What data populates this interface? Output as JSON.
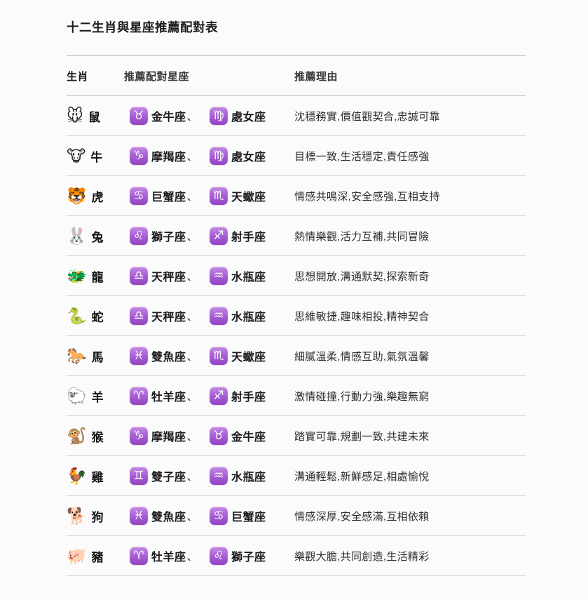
{
  "page": {
    "title": "十二生肖與星座推薦配對表",
    "background_color": "#fbfbfb",
    "zodiac_badge_color_top": "#c48ce5",
    "zodiac_badge_color_bottom": "#9044c4",
    "divider_color": "#d2d2d2"
  },
  "table": {
    "headers": [
      "生肖",
      "推薦配對星座",
      "推薦理由"
    ],
    "rows": [
      {
        "animal_emoji": "🐭",
        "animal": "鼠",
        "sign1_symbol": "♉",
        "sign1": "金牛座",
        "separator": "、",
        "sign2_symbol": "♍",
        "sign2": "處女座",
        "reason": "沈穩務實,價值觀契合,忠誠可靠"
      },
      {
        "animal_emoji": "🐮",
        "animal": "牛",
        "sign1_symbol": "♑",
        "sign1": "摩羯座",
        "separator": "、",
        "sign2_symbol": "♍",
        "sign2": "處女座",
        "reason": "目標一致,生活穩定,責任感強"
      },
      {
        "animal_emoji": "🐯",
        "animal": "虎",
        "sign1_symbol": "♋",
        "sign1": "巨蟹座",
        "separator": "、",
        "sign2_symbol": "♏",
        "sign2": "天蠍座",
        "reason": "情感共鳴深,安全感強,互相支持"
      },
      {
        "animal_emoji": "🐰",
        "animal": "兔",
        "sign1_symbol": "♌",
        "sign1": "獅子座",
        "separator": "、",
        "sign2_symbol": "♐",
        "sign2": "射手座",
        "reason": "熱情樂觀,活力互補,共同冒險"
      },
      {
        "animal_emoji": "🐲",
        "animal": "龍",
        "sign1_symbol": "♎",
        "sign1": "天秤座",
        "separator": "、",
        "sign2_symbol": "♒",
        "sign2": "水瓶座",
        "reason": "思想開放,溝通默契,探索新奇"
      },
      {
        "animal_emoji": "🐍",
        "animal": "蛇",
        "sign1_symbol": "♎",
        "sign1": "天秤座",
        "separator": "、",
        "sign2_symbol": "♒",
        "sign2": "水瓶座",
        "reason": "思維敏捷,趣味相投,精神契合"
      },
      {
        "animal_emoji": "🐎",
        "animal": "馬",
        "sign1_symbol": "♓",
        "sign1": "雙魚座",
        "separator": "、",
        "sign2_symbol": "♏",
        "sign2": "天蠍座",
        "reason": "細膩溫柔,情感互助,氣氛溫馨"
      },
      {
        "animal_emoji": "🐑",
        "animal": "羊",
        "sign1_symbol": "♈",
        "sign1": "牡羊座",
        "separator": "、",
        "sign2_symbol": "♐",
        "sign2": "射手座",
        "reason": "激情碰撞,行動力強,樂趣無窮"
      },
      {
        "animal_emoji": "🐒",
        "animal": "猴",
        "sign1_symbol": "♑",
        "sign1": "摩羯座",
        "separator": "、",
        "sign2_symbol": "♉",
        "sign2": "金牛座",
        "reason": "踏實可靠,規劃一致,共建未來"
      },
      {
        "animal_emoji": "🐓",
        "animal": "雞",
        "sign1_symbol": "♊",
        "sign1": "雙子座",
        "separator": "、",
        "sign2_symbol": "♒",
        "sign2": "水瓶座",
        "reason": "溝通輕鬆,新鮮感足,相處愉悅"
      },
      {
        "animal_emoji": "🐕",
        "animal": "狗",
        "sign1_symbol": "♓",
        "sign1": "雙魚座",
        "separator": "、",
        "sign2_symbol": "♋",
        "sign2": "巨蟹座",
        "reason": "情感深厚,安全感滿,互相依賴"
      },
      {
        "animal_emoji": "🐖",
        "animal": "豬",
        "sign1_symbol": "♈",
        "sign1": "牡羊座",
        "separator": "、",
        "sign2_symbol": "♌",
        "sign2": "獅子座",
        "reason": "樂觀大膽,共同創造,生活精彩"
      }
    ]
  }
}
